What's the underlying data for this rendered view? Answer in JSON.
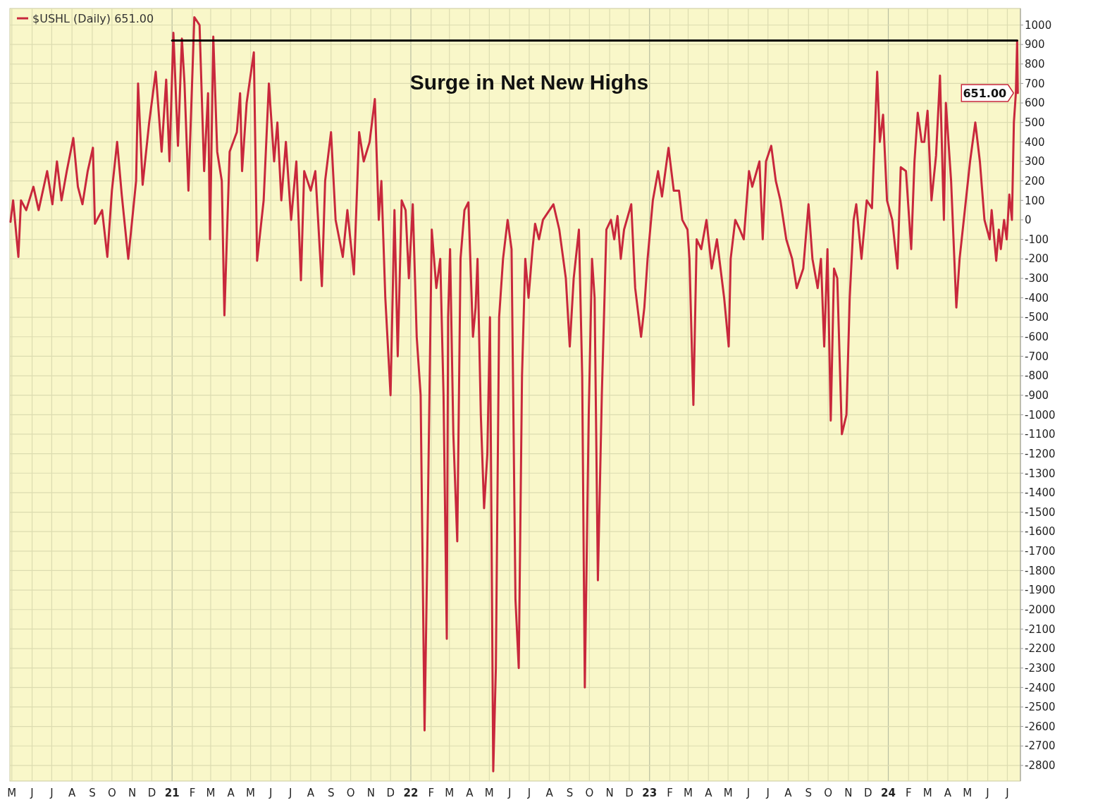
{
  "chart_data": {
    "type": "line",
    "legend": "top left",
    "grid": true,
    "marker": "none",
    "line_style": "solid",
    "annotations": [
      "Surge in Net New Highs",
      {
        "text": "651.00",
        "x": "2024-07-17",
        "y": 651
      }
    ],
    "xlim": [
      "2020-04-28",
      "2024-07-21"
    ],
    "xticks": [
      {
        "value": "2020-05-01",
        "label": "M"
      },
      {
        "value": "2020-06-01",
        "label": "J"
      },
      {
        "value": "2020-07-01",
        "label": "J"
      },
      {
        "value": "2020-08-01",
        "label": "A"
      },
      {
        "value": "2020-09-01",
        "label": "S"
      },
      {
        "value": "2020-10-01",
        "label": "O"
      },
      {
        "value": "2020-11-01",
        "label": "N"
      },
      {
        "value": "2020-12-01",
        "label": "D"
      },
      {
        "value": "2021-01-01",
        "label": "21"
      },
      {
        "value": "2021-02-01",
        "label": "F"
      },
      {
        "value": "2021-03-01",
        "label": "M"
      },
      {
        "value": "2021-04-01",
        "label": "A"
      },
      {
        "value": "2021-05-01",
        "label": "M"
      },
      {
        "value": "2021-06-01",
        "label": "J"
      },
      {
        "value": "2021-07-01",
        "label": "J"
      },
      {
        "value": "2021-08-01",
        "label": "A"
      },
      {
        "value": "2021-09-01",
        "label": "S"
      },
      {
        "value": "2021-10-01",
        "label": "O"
      },
      {
        "value": "2021-11-01",
        "label": "N"
      },
      {
        "value": "2021-12-01",
        "label": "D"
      },
      {
        "value": "2022-01-01",
        "label": "22"
      },
      {
        "value": "2022-02-01",
        "label": "F"
      },
      {
        "value": "2022-03-01",
        "label": "M"
      },
      {
        "value": "2022-04-01",
        "label": "A"
      },
      {
        "value": "2022-05-01",
        "label": "M"
      },
      {
        "value": "2022-06-01",
        "label": "J"
      },
      {
        "value": "2022-07-01",
        "label": "J"
      },
      {
        "value": "2022-08-01",
        "label": "A"
      },
      {
        "value": "2022-09-01",
        "label": "S"
      },
      {
        "value": "2022-10-01",
        "label": "O"
      },
      {
        "value": "2022-11-01",
        "label": "N"
      },
      {
        "value": "2022-12-01",
        "label": "D"
      },
      {
        "value": "2023-01-01",
        "label": "23"
      },
      {
        "value": "2023-02-01",
        "label": "F"
      },
      {
        "value": "2023-03-01",
        "label": "M"
      },
      {
        "value": "2023-04-01",
        "label": "A"
      },
      {
        "value": "2023-05-01",
        "label": "M"
      },
      {
        "value": "2023-06-01",
        "label": "J"
      },
      {
        "value": "2023-07-01",
        "label": "J"
      },
      {
        "value": "2023-08-01",
        "label": "A"
      },
      {
        "value": "2023-09-01",
        "label": "S"
      },
      {
        "value": "2023-10-01",
        "label": "O"
      },
      {
        "value": "2023-11-01",
        "label": "N"
      },
      {
        "value": "2023-12-01",
        "label": "D"
      },
      {
        "value": "2024-01-01",
        "label": "24"
      },
      {
        "value": "2024-02-01",
        "label": "F"
      },
      {
        "value": "2024-03-01",
        "label": "M"
      },
      {
        "value": "2024-04-01",
        "label": "A"
      },
      {
        "value": "2024-05-01",
        "label": "M"
      },
      {
        "value": "2024-06-01",
        "label": "J"
      },
      {
        "value": "2024-07-01",
        "label": "J"
      }
    ],
    "ylim": [
      -2880,
      1085
    ],
    "yticks": [
      -2800,
      -2700,
      -2600,
      -2500,
      -2400,
      -2300,
      -2200,
      -2100,
      -2000,
      -1900,
      -1800,
      -1700,
      -1600,
      -1500,
      -1400,
      -1300,
      -1200,
      -1100,
      -1000,
      -900,
      -800,
      -700,
      -600,
      -500,
      -400,
      -300,
      -200,
      -100,
      0,
      100,
      200,
      300,
      400,
      500,
      600,
      700,
      800,
      900,
      1000
    ],
    "series": [
      {
        "name": "$USHL (Daily) 651.00",
        "color": "#c8283c",
        "x": [
          "2020-04-29",
          "2020-05-03",
          "2020-05-11",
          "2020-05-15",
          "2020-05-23",
          "2020-06-03",
          "2020-06-11",
          "2020-06-24",
          "2020-07-02",
          "2020-07-09",
          "2020-07-16",
          "2020-07-24",
          "2020-08-03",
          "2020-08-10",
          "2020-08-17",
          "2020-08-25",
          "2020-09-02",
          "2020-09-05",
          "2020-09-16",
          "2020-09-24",
          "2020-10-01",
          "2020-10-09",
          "2020-10-16",
          "2020-10-26",
          "2020-11-07",
          "2020-11-10",
          "2020-11-17",
          "2020-11-27",
          "2020-12-07",
          "2020-12-16",
          "2020-12-23",
          "2020-12-28",
          "2021-01-03",
          "2021-01-10",
          "2021-01-16",
          "2021-01-20",
          "2021-01-26",
          "2021-02-04",
          "2021-02-12",
          "2021-02-19",
          "2021-02-25",
          "2021-02-28",
          "2021-03-05",
          "2021-03-11",
          "2021-03-18",
          "2021-03-22",
          "2021-03-30",
          "2021-04-10",
          "2021-04-15",
          "2021-04-18",
          "2021-04-25",
          "2021-05-06",
          "2021-05-11",
          "2021-05-21",
          "2021-05-29",
          "2021-06-06",
          "2021-06-11",
          "2021-06-17",
          "2021-06-24",
          "2021-07-02",
          "2021-07-10",
          "2021-07-17",
          "2021-07-22",
          "2021-08-01",
          "2021-08-08",
          "2021-08-18",
          "2021-08-23",
          "2021-09-01",
          "2021-09-08",
          "2021-09-19",
          "2021-09-26",
          "2021-10-06",
          "2021-10-14",
          "2021-10-21",
          "2021-10-30",
          "2021-11-07",
          "2021-11-13",
          "2021-11-17",
          "2021-11-23",
          "2021-12-01",
          "2021-12-07",
          "2021-12-12",
          "2021-12-18",
          "2021-12-24",
          "2021-12-29",
          "2022-01-04",
          "2022-01-10",
          "2022-01-16",
          "2022-01-22",
          "2022-01-26",
          "2022-02-02",
          "2022-02-09",
          "2022-02-15",
          "2022-02-20",
          "2022-02-25",
          "2022-02-27",
          "2022-03-02",
          "2022-03-07",
          "2022-03-13",
          "2022-03-18",
          "2022-03-24",
          "2022-03-30",
          "2022-04-06",
          "2022-04-10",
          "2022-04-13",
          "2022-04-18",
          "2022-04-23",
          "2022-04-28",
          "2022-05-02",
          "2022-05-07",
          "2022-05-11",
          "2022-05-16",
          "2022-05-22",
          "2022-05-29",
          "2022-06-04",
          "2022-06-10",
          "2022-06-15",
          "2022-06-20",
          "2022-06-25",
          "2022-06-30",
          "2022-07-06",
          "2022-07-10",
          "2022-07-16",
          "2022-07-22",
          "2022-08-01",
          "2022-08-07",
          "2022-08-16",
          "2022-08-26",
          "2022-09-01",
          "2022-09-07",
          "2022-09-15",
          "2022-09-20",
          "2022-09-24",
          "2022-09-30",
          "2022-10-05",
          "2022-10-09",
          "2022-10-14",
          "2022-10-20",
          "2022-10-27",
          "2022-11-03",
          "2022-11-08",
          "2022-11-13",
          "2022-11-18",
          "2022-11-23",
          "2022-12-04",
          "2022-12-10",
          "2022-12-19",
          "2022-12-24",
          "2022-12-29",
          "2023-01-06",
          "2023-01-14",
          "2023-01-20",
          "2023-01-30",
          "2023-02-07",
          "2023-02-15",
          "2023-02-20",
          "2023-02-28",
          "2023-03-03",
          "2023-03-09",
          "2023-03-14",
          "2023-03-21",
          "2023-03-29",
          "2023-04-06",
          "2023-04-14",
          "2023-04-25",
          "2023-05-02",
          "2023-05-05",
          "2023-05-12",
          "2023-05-19",
          "2023-05-25",
          "2023-06-02",
          "2023-06-07",
          "2023-06-18",
          "2023-06-23",
          "2023-06-28",
          "2023-07-06",
          "2023-07-13",
          "2023-07-20",
          "2023-07-29",
          "2023-08-07",
          "2023-08-14",
          "2023-08-24",
          "2023-09-01",
          "2023-09-07",
          "2023-09-15",
          "2023-09-20",
          "2023-09-25",
          "2023-09-30",
          "2023-10-05",
          "2023-10-10",
          "2023-10-15",
          "2023-10-22",
          "2023-10-29",
          "2023-11-03",
          "2023-11-09",
          "2023-11-13",
          "2023-11-21",
          "2023-11-29",
          "2023-12-07",
          "2023-12-15",
          "2023-12-19",
          "2023-12-24",
          "2023-12-30",
          "2024-01-07",
          "2024-01-15",
          "2024-01-20",
          "2024-01-28",
          "2024-02-05",
          "2024-02-10",
          "2024-02-15",
          "2024-02-21",
          "2024-02-25",
          "2024-03-01",
          "2024-03-07",
          "2024-03-14",
          "2024-03-20",
          "2024-03-26",
          "2024-03-29",
          "2024-04-06",
          "2024-04-14",
          "2024-04-19",
          "2024-04-27",
          "2024-05-05",
          "2024-05-13",
          "2024-05-20",
          "2024-05-27",
          "2024-06-04",
          "2024-06-07",
          "2024-06-14",
          "2024-06-18",
          "2024-06-21",
          "2024-06-26",
          "2024-06-30",
          "2024-07-04",
          "2024-07-08",
          "2024-07-11",
          "2024-07-14",
          "2024-07-16",
          "2024-07-17"
        ],
        "values": [
          -10,
          100,
          -190,
          100,
          50,
          170,
          50,
          250,
          80,
          300,
          100,
          250,
          420,
          170,
          80,
          250,
          370,
          -20,
          50,
          -190,
          150,
          400,
          130,
          -200,
          200,
          700,
          180,
          500,
          760,
          350,
          720,
          300,
          960,
          380,
          930,
          700,
          150,
          1040,
          1000,
          250,
          650,
          -100,
          940,
          350,
          200,
          -490,
          350,
          450,
          650,
          250,
          600,
          860,
          -210,
          100,
          700,
          300,
          500,
          100,
          400,
          0,
          300,
          -310,
          250,
          150,
          250,
          -340,
          200,
          450,
          0,
          -190,
          50,
          -280,
          450,
          300,
          400,
          620,
          0,
          200,
          -400,
          -900,
          50,
          -700,
          100,
          50,
          -300,
          80,
          -600,
          -900,
          -2620,
          -1750,
          -50,
          -350,
          -200,
          -900,
          -2150,
          -500,
          -150,
          -1100,
          -1650,
          -200,
          50,
          90,
          -600,
          -450,
          -200,
          -1000,
          -1480,
          -1200,
          -500,
          -2830,
          -2300,
          -500,
          -200,
          0,
          -150,
          -1950,
          -2300,
          -800,
          -200,
          -400,
          -150,
          -20,
          -100,
          0,
          50,
          80,
          -50,
          -300,
          -650,
          -300,
          -50,
          -800,
          -2400,
          -1000,
          -200,
          -400,
          -1850,
          -900,
          -50,
          0,
          -100,
          20,
          -200,
          -50,
          80,
          -350,
          -600,
          -450,
          -200,
          100,
          250,
          120,
          370,
          150,
          150,
          0,
          -50,
          -200,
          -950,
          -100,
          -150,
          0,
          -250,
          -100,
          -400,
          -650,
          -200,
          0,
          -50,
          -100,
          250,
          170,
          300,
          -100,
          300,
          380,
          200,
          100,
          -100,
          -200,
          -350,
          -250,
          80,
          -200,
          -350,
          -200,
          -650,
          -150,
          -1030,
          -250,
          -300,
          -1100,
          -1000,
          -400,
          0,
          80,
          -200,
          100,
          60,
          760,
          400,
          540,
          100,
          0,
          -250,
          270,
          250,
          -150,
          300,
          550,
          400,
          400,
          560,
          100,
          330,
          740,
          0,
          600,
          200,
          -450,
          -200,
          50,
          300,
          500,
          300,
          0,
          -100,
          50,
          -210,
          -50,
          -150,
          0,
          -100,
          130,
          0,
          500,
          650,
          920,
          651
        ]
      },
      {
        "type": "line",
        "color": "#000000",
        "x": [
          "2021-01-01",
          "2024-07-16"
        ],
        "values": [
          920,
          920
        ]
      }
    ]
  }
}
